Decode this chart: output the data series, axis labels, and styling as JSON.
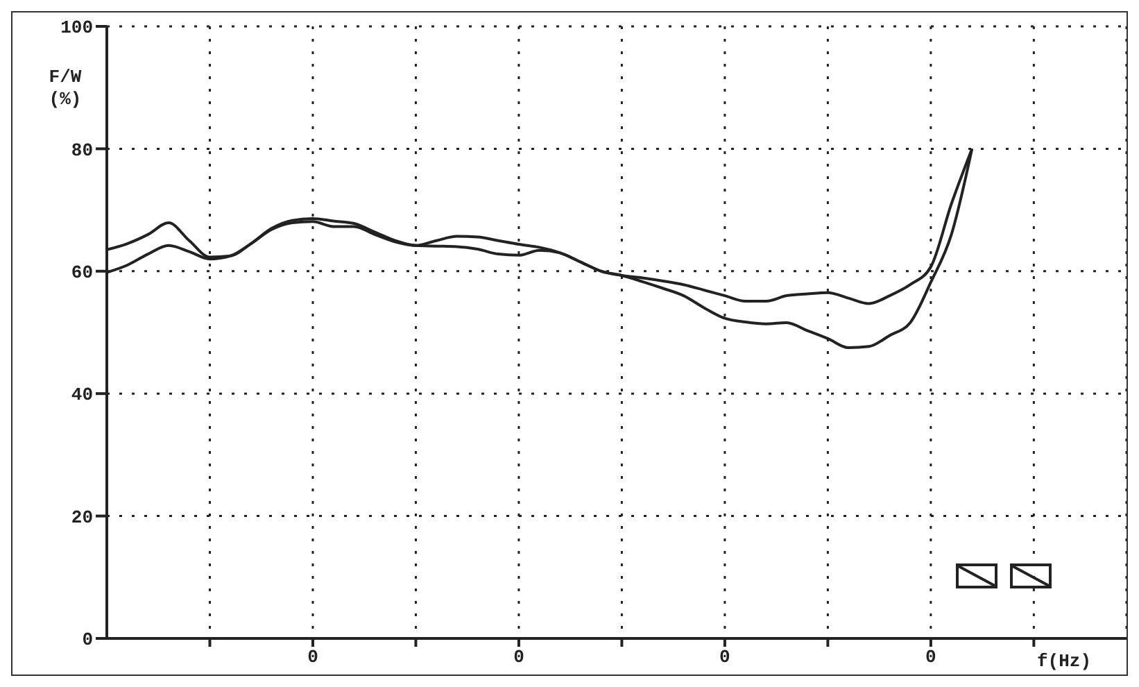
{
  "chart_data": {
    "type": "line",
    "ylabel": "F/W (%)",
    "xlabel": "f(Hz)",
    "categories": [
      null,
      null,
      null,
      null,
      null,
      null,
      null,
      null,
      null,
      null,
      "0",
      null,
      null,
      null,
      null,
      null,
      null,
      null,
      null,
      null,
      "0",
      null,
      null,
      null,
      null,
      null,
      null,
      null,
      null,
      null,
      "0",
      null,
      null,
      null,
      null,
      null,
      null,
      null,
      null,
      null,
      "0",
      null,
      null,
      null,
      null,
      null,
      null,
      null,
      null,
      null
    ],
    "series": [
      {
        "color": "#222222",
        "values": [
          63.5,
          64.5,
          66,
          67.9,
          65,
          62.3,
          62.5,
          64.5,
          67,
          68.3,
          68.6,
          68.2,
          67.8,
          66.4,
          65,
          64.2,
          65,
          65.7,
          65.6,
          65,
          64.4,
          63.9,
          63,
          61.5,
          60,
          59.3,
          58.9,
          58.4,
          57.8,
          56.9,
          56,
          55.1,
          55.1,
          56,
          56.3,
          56.5,
          55.6,
          54.7,
          56,
          57.8,
          60.7,
          71,
          80,
          null,
          null,
          null,
          null,
          null,
          null,
          null
        ]
      },
      {
        "color": "#222222",
        "values": [
          59.8,
          61,
          62.8,
          64.2,
          63.2,
          62,
          62.5,
          64.5,
          66.8,
          67.9,
          68.1,
          67.3,
          67.3,
          66,
          64.8,
          64.2,
          64.1,
          64,
          63.6,
          62.8,
          62.6,
          63.4,
          63,
          61.5,
          60,
          59.3,
          58.3,
          57.2,
          56,
          54,
          52.3,
          51.7,
          51.4,
          51.6,
          50.3,
          49,
          47.5,
          47.7,
          49.5,
          51.6,
          58.2,
          66,
          80,
          null,
          null,
          null,
          null,
          null,
          null,
          null
        ]
      }
    ],
    "ylim": [
      0,
      100
    ],
    "yticks": [
      0,
      20,
      40,
      60,
      80,
      100
    ],
    "grid": true,
    "marker": "none",
    "line_style": "solid",
    "legend": false
  }
}
